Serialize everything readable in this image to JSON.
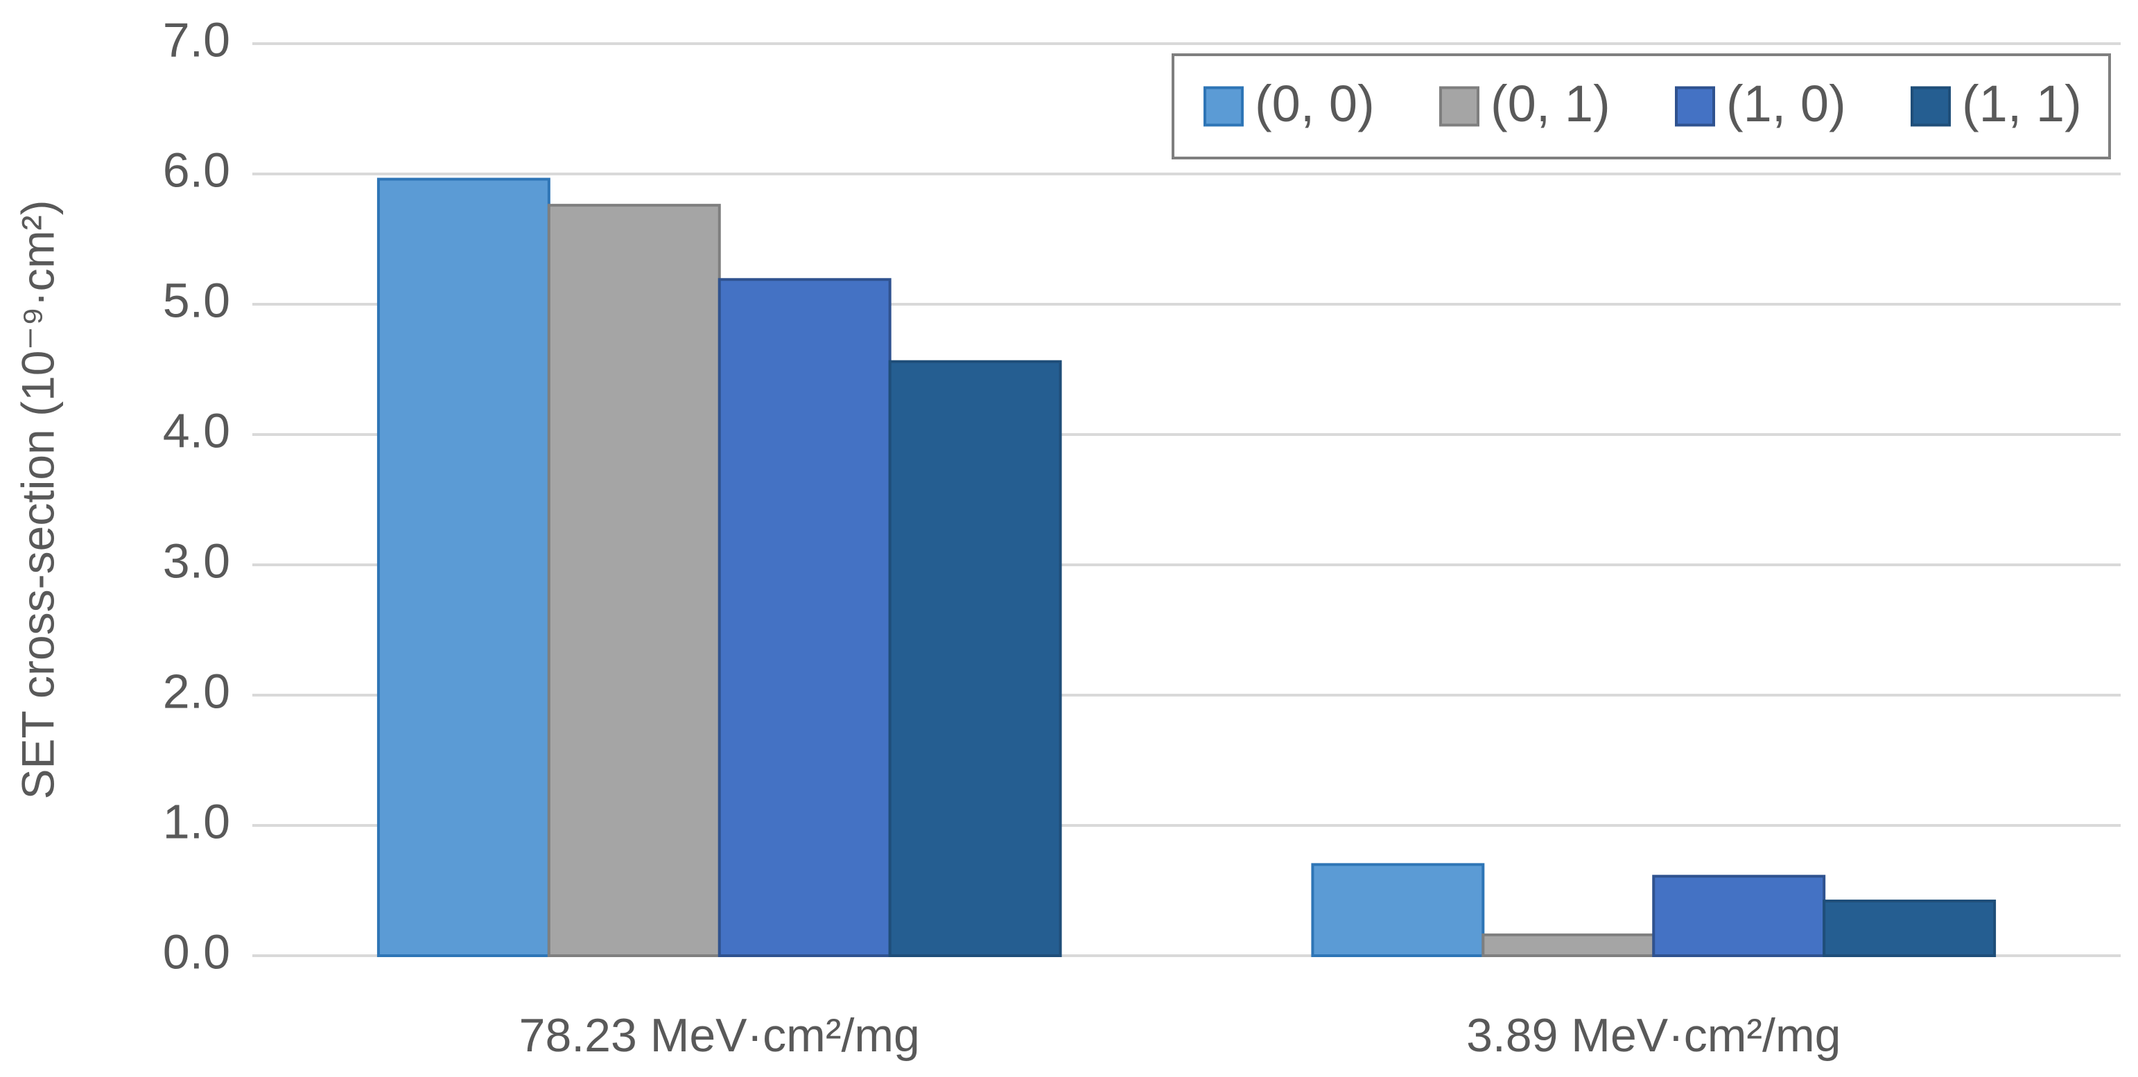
{
  "chart_data": {
    "type": "bar",
    "y_label": "SET cross-section (10⁻⁹·cm²)",
    "categories": [
      "78.23 MeV·cm²/mg",
      "3.89 MeV·cm²/mg"
    ],
    "series": [
      {
        "name": "(0, 0)",
        "color": "#5b9bd5",
        "values": [
          5.96,
          0.7
        ]
      },
      {
        "name": "(0, 1)",
        "color": "#a5a5a5",
        "values": [
          5.76,
          0.16
        ]
      },
      {
        "name": "(1, 0)",
        "color": "#4472c4",
        "values": [
          5.19,
          0.61
        ]
      },
      {
        "name": "(1, 1)",
        "color": "#255e91",
        "values": [
          4.56,
          0.42
        ]
      }
    ],
    "ylim": [
      0,
      7
    ],
    "yticks": [
      {
        "value": 0,
        "label": "0.0"
      },
      {
        "value": 1,
        "label": "1.0"
      },
      {
        "value": 2,
        "label": "2.0"
      },
      {
        "value": 3,
        "label": "3.0"
      },
      {
        "value": 4,
        "label": "4.0"
      },
      {
        "value": 5,
        "label": "5.0"
      },
      {
        "value": 6,
        "label": "6.0"
      },
      {
        "value": 7,
        "label": "7.0"
      }
    ],
    "grid": true,
    "legend": "top-right"
  }
}
